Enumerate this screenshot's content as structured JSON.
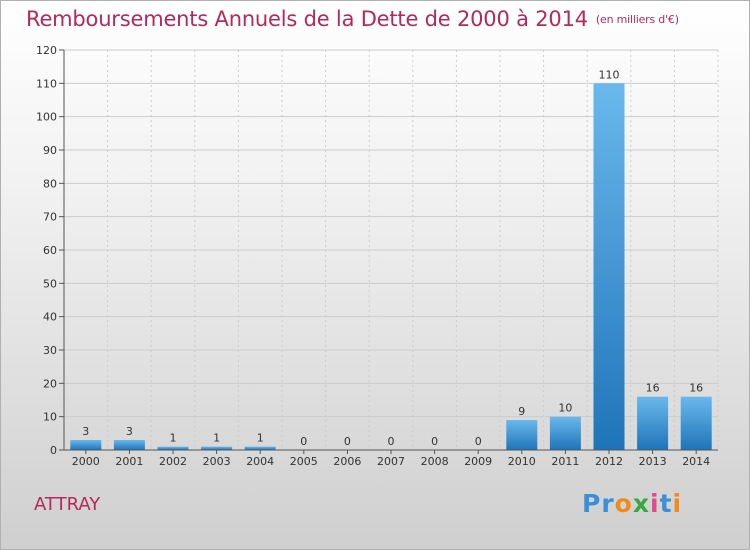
{
  "header": {
    "title": "Remboursements Annuels de la Dette de 2000 à 2014",
    "unit": "(en milliers d'€)"
  },
  "commune": "ATTRAY",
  "logo": {
    "text": "Proxiti",
    "letters": [
      "P",
      "r",
      "o",
      "x",
      "i",
      "t",
      "i"
    ],
    "colors": [
      "#3a8fd6",
      "#3a8fd6",
      "#f08a1c",
      "#3aa840",
      "#e04a8a",
      "#3a8fd6",
      "#f08a1c"
    ]
  },
  "colors": {
    "title": "#b5295a",
    "bar_top": "#6ab8ec",
    "bar_bottom": "#1f74b9",
    "grid": "#cccccc"
  },
  "chart_data": {
    "type": "bar",
    "title": "Remboursements Annuels de la Dette de 2000 à 2014",
    "subtitle": "(en milliers d'€)",
    "categories": [
      "2000",
      "2001",
      "2002",
      "2003",
      "2004",
      "2005",
      "2006",
      "2007",
      "2008",
      "2009",
      "2010",
      "2011",
      "2012",
      "2013",
      "2014"
    ],
    "values": [
      3,
      3,
      1,
      1,
      1,
      0,
      0,
      0,
      0,
      0,
      9,
      10,
      110,
      16,
      16
    ],
    "ylim": [
      0,
      120
    ],
    "yticks": [
      0,
      10,
      20,
      30,
      40,
      50,
      60,
      70,
      80,
      90,
      100,
      110,
      120
    ],
    "grid": true,
    "xlabel": "",
    "ylabel": ""
  }
}
